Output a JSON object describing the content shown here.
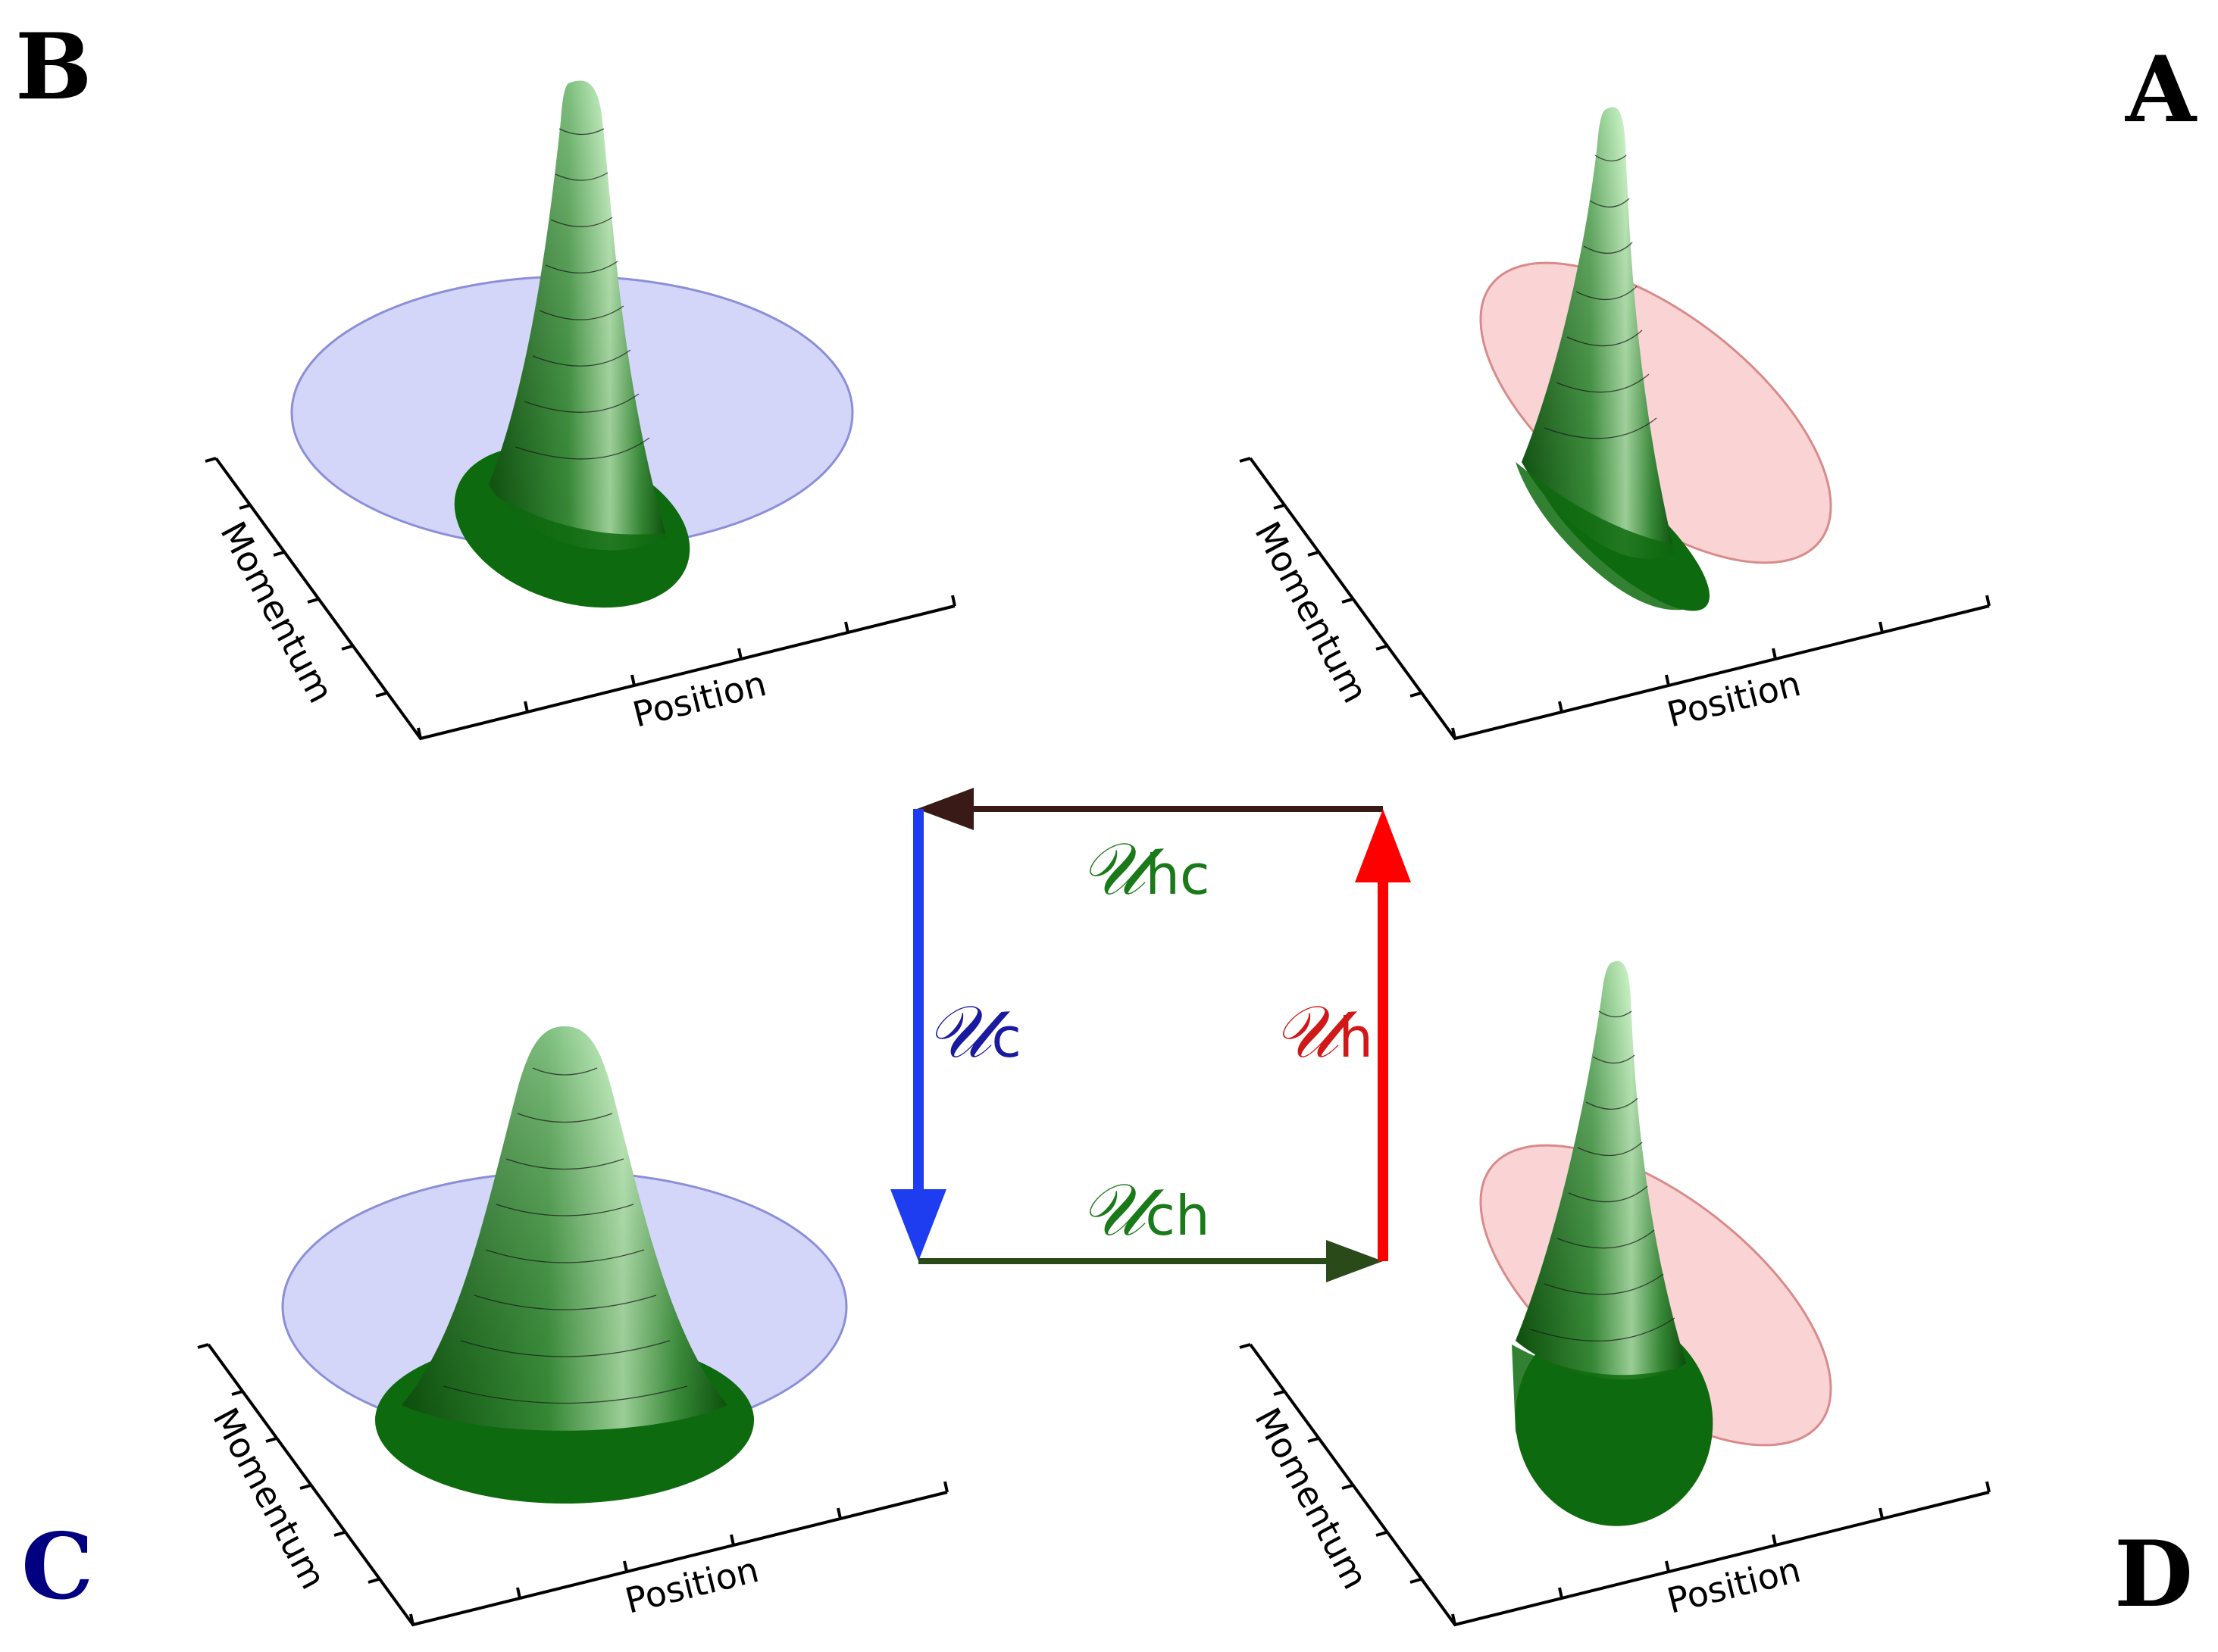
{
  "panels": [
    {
      "id": "B",
      "label": "B",
      "label_color": "#000000",
      "ellipse_color": "#b8baf5",
      "x_axis": "Position",
      "y_axis": "Momentum"
    },
    {
      "id": "A",
      "label": "A",
      "label_color": "#000000",
      "ellipse_color": "#f7b8b8",
      "x_axis": "Position",
      "y_axis": "Momentum"
    },
    {
      "id": "C",
      "label": "C",
      "label_color": "#000080",
      "ellipse_color": "#b8baf5",
      "x_axis": "Position",
      "y_axis": "Momentum"
    },
    {
      "id": "D",
      "label": "D",
      "label_color": "#000000",
      "ellipse_color": "#f7b8b8",
      "x_axis": "Position",
      "y_axis": "Momentum"
    }
  ],
  "cycle": {
    "hc": {
      "script": "𝒰",
      "sub": "hc",
      "text_color": "#1a7a1a",
      "arrow_color": "#3a1a16"
    },
    "c": {
      "script": "𝒰",
      "sub": "c",
      "text_color": "#1a1aa0",
      "arrow_color": "#1f3df0"
    },
    "h": {
      "script": "𝒰",
      "sub": "h",
      "text_color": "#d01818",
      "arrow_color": "#ff0000"
    },
    "ch": {
      "script": "𝒰",
      "sub": "ch",
      "text_color": "#1a7a1a",
      "arrow_color": "#2a4a1a"
    }
  }
}
